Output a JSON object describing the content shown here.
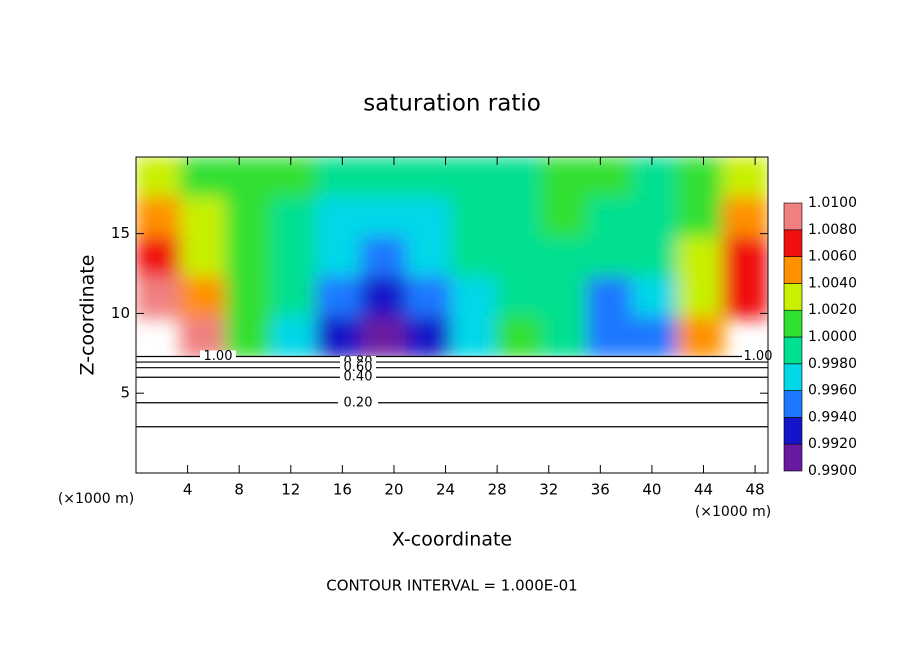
{
  "chart_data": {
    "type": "contour",
    "title": "saturation ratio",
    "xlabel": "X-coordinate",
    "ylabel": "Z-coordinate",
    "x_unit_left": "(×1000 m)",
    "x_unit_right": "(×1000 m)",
    "footer": "CONTOUR INTERVAL = 1.000E-01",
    "xlim": [
      0,
      49
    ],
    "ylim": [
      0,
      19.8
    ],
    "xticks": [
      4,
      8,
      12,
      16,
      20,
      24,
      28,
      32,
      36,
      40,
      44,
      48
    ],
    "yticks": [
      5,
      10,
      15
    ],
    "field": {
      "x": [
        1.75,
        5.25,
        8.75,
        12.25,
        15.75,
        19.25,
        22.75,
        26.25,
        29.75,
        33.25,
        36.75,
        40.25,
        43.75,
        47.25
      ],
      "z": [
        18.5,
        16,
        13.5,
        11,
        8.5
      ],
      "values": [
        [
          1.002,
          1.001,
          1.0005,
          1.0,
          0.999,
          0.9985,
          0.9985,
          0.999,
          0.9995,
          1.0005,
          1.0,
          0.9995,
          1.0005,
          1.002
        ],
        [
          1.005,
          1.002,
          1.0,
          0.999,
          0.9975,
          0.997,
          0.997,
          0.998,
          0.999,
          1.0005,
          0.999,
          0.999,
          1.001,
          1.004
        ],
        [
          1.007,
          1.003,
          1.0,
          0.999,
          0.996,
          0.995,
          0.996,
          0.998,
          0.9995,
          0.999,
          0.998,
          0.999,
          1.002,
          1.006
        ],
        [
          1.008,
          1.005,
          1.0,
          0.998,
          0.994,
          0.993,
          0.995,
          0.997,
          0.9995,
          0.998,
          0.995,
          0.996,
          1.003,
          1.007
        ],
        [
          null,
          1.008,
          1.0,
          0.997,
          0.992,
          0.991,
          0.992,
          0.996,
          1.001,
          0.998,
          0.994,
          0.994,
          1.004,
          null
        ]
      ]
    },
    "colorbar": {
      "ticks": [
        {
          "value": 0.99,
          "label": "0.9900"
        },
        {
          "value": 0.992,
          "label": "0.9920"
        },
        {
          "value": 0.994,
          "label": "0.9940"
        },
        {
          "value": 0.996,
          "label": "0.9960"
        },
        {
          "value": 0.998,
          "label": "0.9980"
        },
        {
          "value": 1.0,
          "label": "1.0000"
        },
        {
          "value": 1.002,
          "label": "1.0020"
        },
        {
          "value": 1.004,
          "label": "1.0040"
        },
        {
          "value": 1.006,
          "label": "1.0060"
        },
        {
          "value": 1.008,
          "label": "1.0080"
        },
        {
          "value": 1.01,
          "label": "1.0100"
        }
      ],
      "colors": [
        "#6a1aa0",
        "#1414c8",
        "#1e78ff",
        "#00d8e8",
        "#00e090",
        "#30e030",
        "#c8f000",
        "#ff9000",
        "#f01010",
        "#f08080"
      ]
    },
    "contour_lines": [
      {
        "z": 7.3,
        "label": "1.00"
      },
      {
        "z": 6.95,
        "label": "0.80"
      },
      {
        "z": 6.6,
        "label": "0.60"
      },
      {
        "z": 6.0,
        "label": "0.40"
      },
      {
        "z": 4.4
      },
      {
        "z": 2.9
      }
    ],
    "contour_label_z": [
      {
        "z": 4.4,
        "label": "0.20"
      }
    ]
  }
}
